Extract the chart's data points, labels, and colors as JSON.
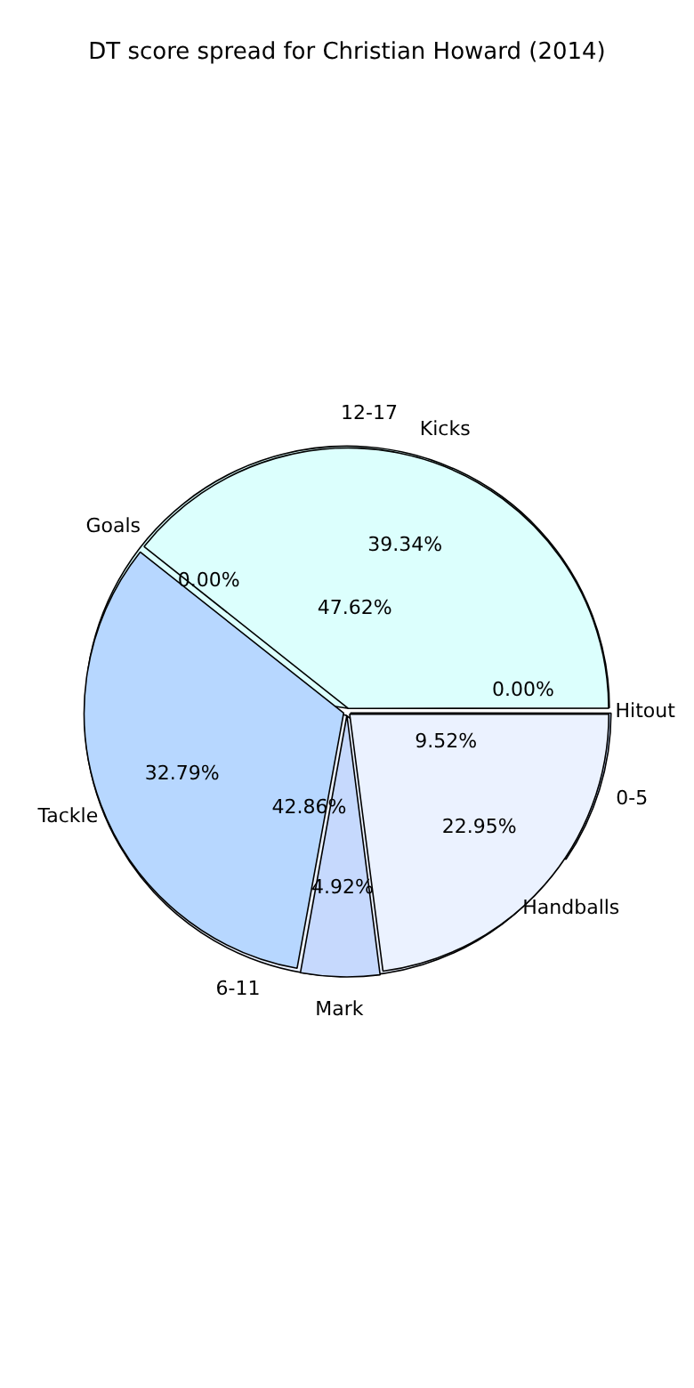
{
  "chart_data": [
    {
      "type": "pie",
      "title": "DT score spread for Christian Howard (2014)",
      "categories": [
        "0-5",
        "6-11",
        "12-17"
      ],
      "values": [
        9.52,
        42.86,
        47.62
      ],
      "value_labels": [
        "9.52%",
        "42.86%",
        "47.62%"
      ],
      "colors": [
        "#c6d9fd",
        "#ebf2ff",
        "#dcfffd"
      ],
      "legend": false
    },
    {
      "type": "pie",
      "categories": [
        "Handballs",
        "Mark",
        "Tackle",
        "Goals",
        "Kicks",
        "Hitout"
      ],
      "values": [
        22.95,
        4.92,
        32.79,
        0.0,
        39.34,
        0.0
      ],
      "value_labels": [
        "22.95%",
        "4.92%",
        "32.79%",
        "0.00%",
        "39.34%",
        "0.00%"
      ],
      "colors": [
        "#ebf2ff",
        "#c6d9fd",
        "#b7d7ff",
        "#c6d9fd",
        "#dcfffd",
        "#8a8a8a"
      ],
      "legend": false
    }
  ]
}
